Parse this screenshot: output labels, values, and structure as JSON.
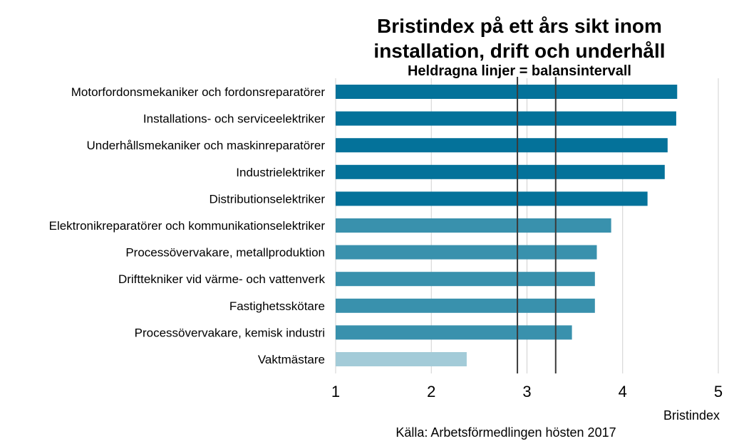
{
  "chart_data": {
    "type": "bar",
    "orientation": "horizontal",
    "title_lines": [
      "Bristindex på ett års sikt inom",
      "installation, drift och underhåll"
    ],
    "subtitle": "Heldragna linjer = balansintervall",
    "xlabel": "Bristindex",
    "source": "Källa: Arbetsförmedlingen hösten 2017",
    "xlim": [
      1,
      5
    ],
    "xticks": [
      "1",
      "2",
      "3",
      "4",
      "5"
    ],
    "grid": true,
    "balance_interval": [
      2.9,
      3.3
    ],
    "categories": [
      "Motorfordonsmekaniker och fordonsreparatörer",
      "Installations- och serviceelektriker",
      "Underhållsmekaniker och maskinreparatörer",
      "Industrielektriker",
      "Distributionselektriker",
      "Elektronikreparatörer och kommunikationselektriker",
      "Processövervakare, metallproduktion",
      "Drifttekniker vid värme- och vattenverk",
      "Fastighetsskötare",
      "Processövervakare, kemisk industri",
      "Vaktmästare"
    ],
    "values": [
      4.57,
      4.56,
      4.47,
      4.44,
      4.26,
      3.88,
      3.73,
      3.71,
      3.71,
      3.47,
      2.37
    ],
    "colors": [
      "#04729a",
      "#04729a",
      "#04729a",
      "#04729a",
      "#04729a",
      "#3991ad",
      "#3991ad",
      "#3991ad",
      "#3991ad",
      "#3991ad",
      "#a3cbd8"
    ]
  }
}
